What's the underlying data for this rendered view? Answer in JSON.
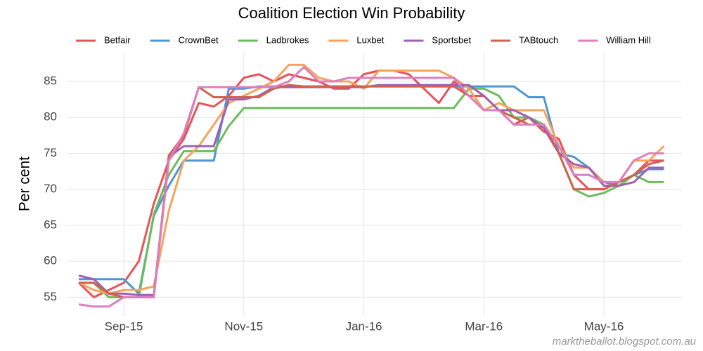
{
  "chart_data": {
    "type": "line",
    "title": "Coalition Election Win Probability",
    "ylabel": "Per cent",
    "caption": "marktheballot.blogspot.com.au",
    "x": [
      7.25,
      7.5,
      7.75,
      8,
      8.25,
      8.5,
      8.75,
      9,
      9.25,
      9.5,
      9.75,
      10,
      10.25,
      10.5,
      10.75,
      11,
      11.25,
      11.5,
      11.75,
      12,
      12.25,
      12.5,
      12.75,
      13,
      13.25,
      13.5,
      13.75,
      14,
      14.25,
      14.5,
      14.75,
      15,
      15.25,
      15.5,
      15.75,
      16,
      16.25,
      16.5,
      16.75,
      17
    ],
    "xlim": [
      7.05,
      17.3
    ],
    "xticks": [
      {
        "value": 8,
        "label": "Sep-15"
      },
      {
        "value": 10,
        "label": "Nov-15"
      },
      {
        "value": 12,
        "label": "Jan-16"
      },
      {
        "value": 14,
        "label": "Mar-16"
      },
      {
        "value": 16,
        "label": "May-16"
      }
    ],
    "ylim": [
      52.4,
      89
    ],
    "yticks": [
      55,
      60,
      65,
      70,
      75,
      80,
      85
    ],
    "grid": true,
    "legend": "top",
    "series": [
      {
        "name": "Betfair",
        "color": "#e8535a",
        "values": [
          57,
          55,
          56,
          57,
          60,
          68,
          74,
          77,
          82,
          81.5,
          83,
          85.5,
          86,
          85,
          86,
          85.5,
          85,
          84,
          84,
          86,
          86.5,
          86.5,
          86,
          84,
          82,
          85,
          83,
          83,
          81,
          79,
          80,
          78,
          77,
          72,
          70,
          70,
          71,
          72,
          74,
          74
        ]
      },
      {
        "name": "CrownBet",
        "color": "#4f96d2",
        "values": [
          57.5,
          57.5,
          57.5,
          57.5,
          55.5,
          66.3,
          70.5,
          74,
          74,
          74,
          84,
          84,
          84.3,
          84.3,
          84.3,
          84.3,
          84.3,
          84.3,
          84.3,
          84.3,
          84.3,
          84.3,
          84.3,
          84.3,
          84.3,
          84.3,
          84.3,
          84.3,
          84.3,
          84.3,
          82.8,
          82.8,
          75,
          74.5,
          73,
          71,
          70.5,
          72,
          72.8,
          72.8
        ]
      },
      {
        "name": "Ladbrokes",
        "color": "#6bbd5b",
        "values": [
          57,
          57,
          55,
          55,
          55,
          66.5,
          72,
          75.3,
          75.3,
          75.3,
          78.8,
          81.3,
          81.3,
          81.3,
          81.3,
          81.3,
          81.3,
          81.3,
          81.3,
          81.3,
          81.3,
          81.3,
          81.3,
          81.3,
          81.3,
          81.3,
          84,
          84,
          83,
          80,
          80,
          79,
          75,
          70,
          69,
          69.5,
          70.5,
          72,
          71,
          71
        ]
      },
      {
        "name": "Luxbet",
        "color": "#f7a35c",
        "values": [
          57,
          56,
          55.5,
          56,
          56,
          56.5,
          67,
          74,
          76,
          79,
          82,
          83,
          84,
          85,
          87.3,
          87.3,
          85.5,
          85,
          85,
          84,
          86.5,
          86.5,
          86.5,
          86.5,
          86.5,
          85.5,
          84,
          81,
          82,
          81,
          81,
          81,
          76,
          73,
          73,
          71,
          71,
          74,
          74,
          76
        ]
      },
      {
        "name": "Sportsbet",
        "color": "#a05fb0",
        "values": [
          58,
          57.5,
          55.5,
          55.5,
          55.3,
          55.3,
          74.5,
          76,
          76,
          76,
          82.5,
          82.5,
          83,
          84.2,
          84.2,
          84.2,
          84.2,
          84.2,
          84.2,
          84.2,
          84.5,
          84.5,
          84.5,
          84.5,
          84.5,
          84.5,
          84.5,
          83,
          81,
          81,
          80,
          78.5,
          75,
          73.5,
          73,
          70.5,
          70.5,
          71,
          73,
          73
        ]
      },
      {
        "name": "TABtouch",
        "color": "#d0624f",
        "values": [
          57,
          57,
          55.5,
          55,
          55,
          55,
          74.7,
          77.5,
          84.2,
          82.8,
          82.8,
          82.8,
          82.8,
          84,
          84.5,
          84.3,
          84.3,
          84.3,
          84.3,
          84.3,
          84.3,
          84.3,
          84.3,
          84.3,
          84.3,
          84.3,
          83,
          81,
          81,
          80,
          79,
          79,
          75,
          70,
          70,
          70,
          71,
          72,
          73.5,
          74
        ]
      },
      {
        "name": "William Hill",
        "color": "#dc7fbf",
        "values": [
          54,
          53.7,
          53.7,
          55,
          55,
          55,
          74,
          77.8,
          84.2,
          84.2,
          84.2,
          84.2,
          84.2,
          84.2,
          85,
          87,
          85,
          85,
          85.5,
          85.5,
          85.5,
          85.5,
          85.5,
          85.5,
          85.5,
          85.5,
          83,
          81,
          81,
          79,
          79,
          79,
          76,
          72,
          72,
          71,
          71,
          74,
          75,
          75
        ]
      }
    ]
  }
}
